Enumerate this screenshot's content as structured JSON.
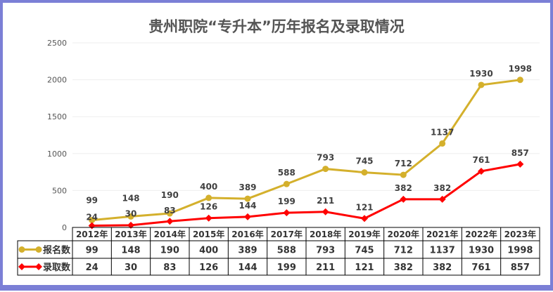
{
  "chart_data": {
    "type": "line",
    "title": "贵州职院“专升本”历年报名及录取情况",
    "categories": [
      "2012年",
      "2013年",
      "2014年",
      "2015年",
      "2016年",
      "2017年",
      "2018年",
      "2019年",
      "2020年",
      "2021年",
      "2022年",
      "2023年"
    ],
    "series": [
      {
        "name": "报名数",
        "color": "#d4b02c",
        "marker": "circle",
        "values": [
          99,
          148,
          190,
          400,
          389,
          588,
          793,
          745,
          712,
          1137,
          1930,
          1998
        ]
      },
      {
        "name": "录取数",
        "color": "#ff0000",
        "marker": "diamond",
        "values": [
          24,
          30,
          83,
          126,
          144,
          199,
          211,
          121,
          382,
          382,
          761,
          857
        ]
      }
    ],
    "ylim": [
      0,
      2500
    ],
    "yticks": [
      "0",
      "500",
      "1000",
      "1500",
      "2000",
      "2500"
    ],
    "grid": true,
    "legend": "data-table-bottom",
    "data_table": true
  }
}
